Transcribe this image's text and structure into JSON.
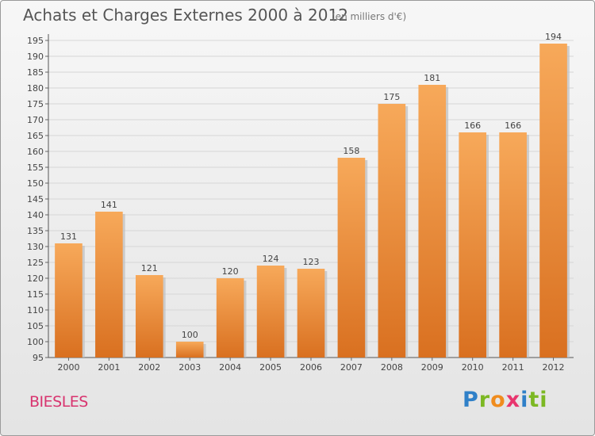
{
  "chart_data": {
    "type": "bar",
    "title": "Achats et Charges Externes 2000 à 2012",
    "unit_note": "(en milliers d'€)",
    "categories": [
      "2000",
      "2001",
      "2002",
      "2003",
      "2004",
      "2005",
      "2006",
      "2007",
      "2008",
      "2009",
      "2010",
      "2011",
      "2012"
    ],
    "values": [
      131,
      141,
      121,
      100,
      120,
      124,
      123,
      158,
      175,
      181,
      166,
      166,
      194
    ],
    "ylim": [
      95,
      195
    ],
    "yticks": [
      95,
      100,
      105,
      110,
      115,
      120,
      125,
      130,
      135,
      140,
      145,
      150,
      155,
      160,
      165,
      170,
      175,
      180,
      185,
      190,
      195
    ],
    "grid": true,
    "bar_color_top": "#f7a95a",
    "bar_color_bottom": "#d97020",
    "grid_color": "#d6d6d6"
  },
  "footer": {
    "commune": "BIESLES",
    "logo_text": "Proxiti"
  }
}
